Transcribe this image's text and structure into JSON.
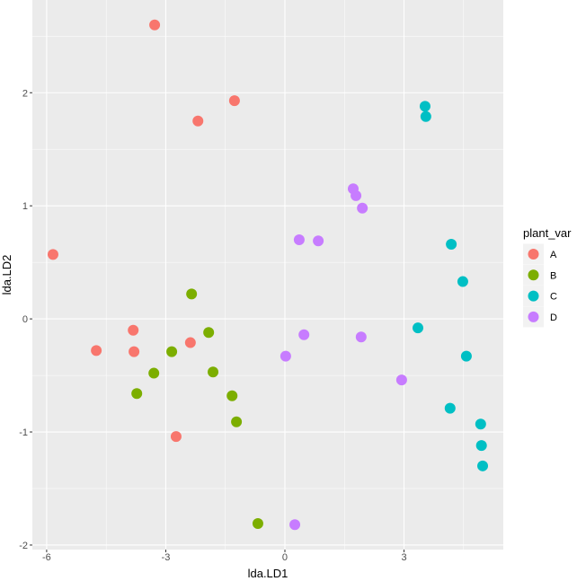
{
  "chart_data": {
    "type": "scatter",
    "xlabel": "lda.LD1",
    "ylabel": "lda.LD2",
    "xlim": [
      -6.36,
      5.5
    ],
    "ylim": [
      -2.04,
      2.82
    ],
    "xticks": [
      -6,
      -3,
      0,
      3
    ],
    "yticks": [
      -2,
      -1,
      0,
      1,
      2
    ],
    "grid": true,
    "legend": {
      "title": "plant_var",
      "placement": "right"
    },
    "series": [
      {
        "name": "A",
        "color": "#F8766D",
        "points": [
          [
            -3.28,
            2.6
          ],
          [
            -1.27,
            1.93
          ],
          [
            -2.19,
            1.75
          ],
          [
            -5.84,
            0.57
          ],
          [
            -3.82,
            -0.1
          ],
          [
            -4.75,
            -0.28
          ],
          [
            -3.8,
            -0.29
          ],
          [
            -2.38,
            -0.21
          ],
          [
            -2.74,
            -1.04
          ]
        ]
      },
      {
        "name": "B",
        "color": "#7CAE00",
        "points": [
          [
            -2.35,
            0.22
          ],
          [
            -1.92,
            -0.12
          ],
          [
            -2.85,
            -0.29
          ],
          [
            -3.3,
            -0.48
          ],
          [
            -3.73,
            -0.66
          ],
          [
            -1.81,
            -0.47
          ],
          [
            -1.33,
            -0.68
          ],
          [
            -1.22,
            -0.91
          ],
          [
            -0.68,
            -1.81
          ]
        ]
      },
      {
        "name": "C",
        "color": "#00BFC4",
        "points": [
          [
            3.53,
            1.88
          ],
          [
            3.55,
            1.79
          ],
          [
            4.19,
            0.66
          ],
          [
            4.48,
            0.33
          ],
          [
            3.35,
            -0.08
          ],
          [
            4.57,
            -0.33
          ],
          [
            4.16,
            -0.79
          ],
          [
            4.93,
            -0.93
          ],
          [
            4.95,
            -1.12
          ],
          [
            4.98,
            -1.3
          ]
        ]
      },
      {
        "name": "D",
        "color": "#C77CFF",
        "points": [
          [
            1.72,
            1.15
          ],
          [
            1.79,
            1.09
          ],
          [
            1.95,
            0.98
          ],
          [
            0.36,
            0.7
          ],
          [
            0.84,
            0.69
          ],
          [
            0.48,
            -0.14
          ],
          [
            1.92,
            -0.16
          ],
          [
            0.02,
            -0.33
          ],
          [
            2.94,
            -0.54
          ],
          [
            0.25,
            -1.82
          ]
        ]
      }
    ]
  }
}
